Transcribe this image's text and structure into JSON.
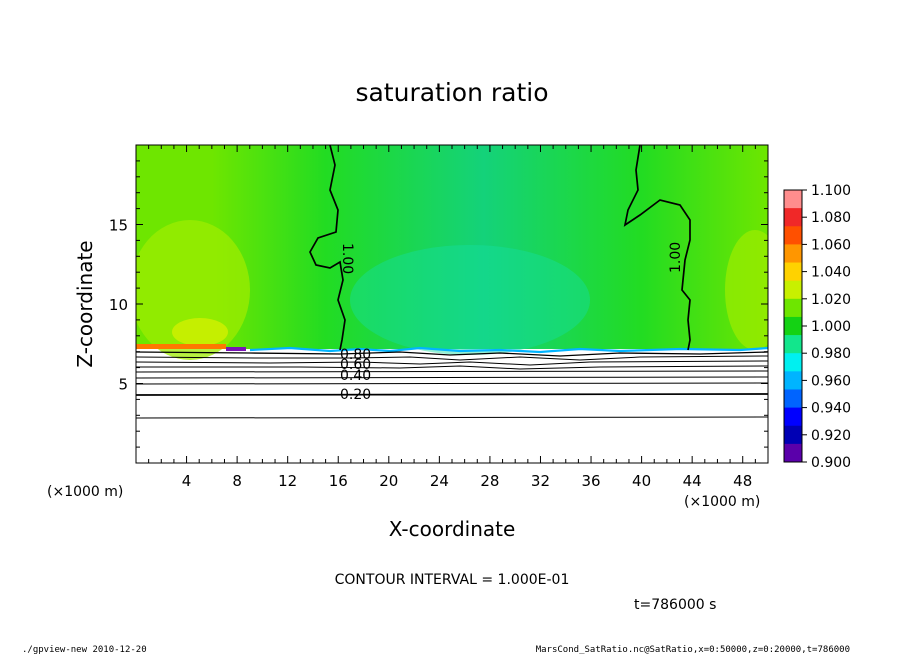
{
  "chart_data": {
    "type": "heatmap",
    "title": "saturation ratio",
    "xlabel": "X-coordinate",
    "ylabel": "Z-coordinate",
    "x_unit": "(×1000 m)",
    "y_unit": "(×1000 m)",
    "xlim": [
      0,
      50
    ],
    "ylim": [
      0,
      20
    ],
    "x_ticks": [
      4,
      8,
      12,
      16,
      20,
      24,
      28,
      32,
      36,
      40,
      44,
      48
    ],
    "y_ticks": [
      5,
      10,
      15
    ],
    "colorbar": {
      "min": 0.9,
      "max": 1.1,
      "labels": [
        "1.100",
        "1.080",
        "1.060",
        "1.040",
        "1.020",
        "1.000",
        "0.980",
        "0.960",
        "0.940",
        "0.920",
        "0.900"
      ],
      "colors": [
        "#ff8d8d",
        "#f02828",
        "#ff5000",
        "#ff9600",
        "#ffd200",
        "#c8f000",
        "#6ee600",
        "#14d214",
        "#12e68c",
        "#00f0f0",
        "#00b4ff",
        "#0064ff",
        "#0000ff",
        "#0000b4",
        "#5a00aa"
      ]
    },
    "contours": [
      {
        "label": "1.00",
        "level": 1.0
      },
      {
        "label": "0.80",
        "level": 0.8
      },
      {
        "label": "0.60",
        "level": 0.6
      },
      {
        "label": "0.40",
        "level": 0.4
      },
      {
        "label": "0.20",
        "level": 0.2
      }
    ],
    "contour_interval_text": "CONTOUR INTERVAL = 1.000E-01",
    "time_text": "t=786000  s"
  },
  "footer": {
    "left": "./gpview-new   2010-12-20",
    "right": "MarsCond_SatRatio.nc@SatRatio,x=0:50000,z=0:20000,t=786000"
  }
}
